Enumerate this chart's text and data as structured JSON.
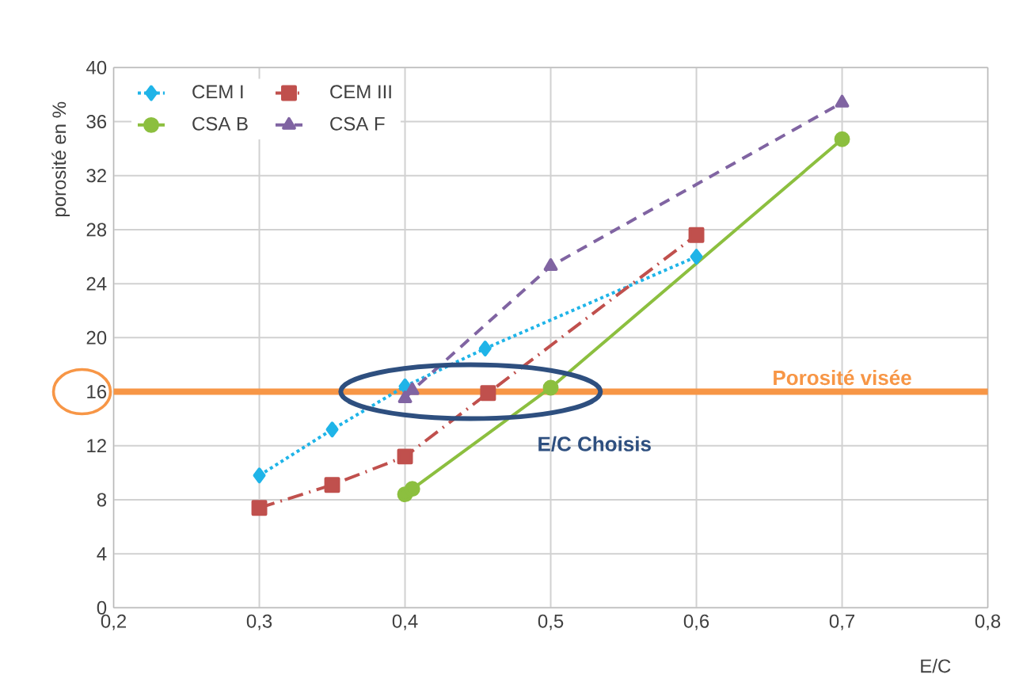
{
  "chart_data": {
    "type": "line",
    "xlabel": "E/C",
    "ylabel": "porosité en %",
    "xlim": [
      0.2,
      0.8
    ],
    "xticks": [
      {
        "value": 0.2,
        "label": "0,2"
      },
      {
        "value": 0.3,
        "label": "0,3"
      },
      {
        "value": 0.4,
        "label": "0,4"
      },
      {
        "value": 0.5,
        "label": "0,5"
      },
      {
        "value": 0.6,
        "label": "0,6"
      },
      {
        "value": 0.7,
        "label": "0,7"
      },
      {
        "value": 0.8,
        "label": "0,8"
      }
    ],
    "ylim": [
      0,
      40
    ],
    "yticks": [
      0,
      4,
      8,
      12,
      16,
      20,
      24,
      28,
      32,
      36,
      40
    ],
    "grid": true,
    "legend": "top left",
    "series": [
      {
        "name": "CEM I",
        "color": "#1fb4e8",
        "marker": "diamond",
        "line_style": "dotted",
        "x": [
          0.3,
          0.35,
          0.4,
          0.455,
          0.6
        ],
        "values": [
          9.8,
          13.2,
          16.4,
          19.2,
          26.0
        ]
      },
      {
        "name": "CEM III",
        "color": "#c0504d",
        "marker": "square",
        "line_style": "dashdot",
        "x": [
          0.3,
          0.35,
          0.4,
          0.457,
          0.6
        ],
        "values": [
          7.4,
          9.1,
          11.2,
          15.9,
          27.6
        ]
      },
      {
        "name": "CSA B",
        "color": "#8cbf3f",
        "marker": "circle",
        "line_style": "solid",
        "x": [
          0.4,
          0.405,
          0.5,
          0.7
        ],
        "values": [
          8.4,
          8.8,
          16.3,
          34.7
        ]
      },
      {
        "name": "CSA F",
        "color": "#8064a2",
        "marker": "triangle",
        "line_style": "dashed",
        "x": [
          0.4,
          0.405,
          0.5,
          0.7
        ],
        "values": [
          15.5,
          16.1,
          25.3,
          37.4
        ]
      }
    ],
    "ref_lines": [
      {
        "axis": "y",
        "value": 16,
        "label": "Porosité visée",
        "color": "#f79646"
      }
    ],
    "annotations": [
      "E/C Choisis"
    ]
  }
}
